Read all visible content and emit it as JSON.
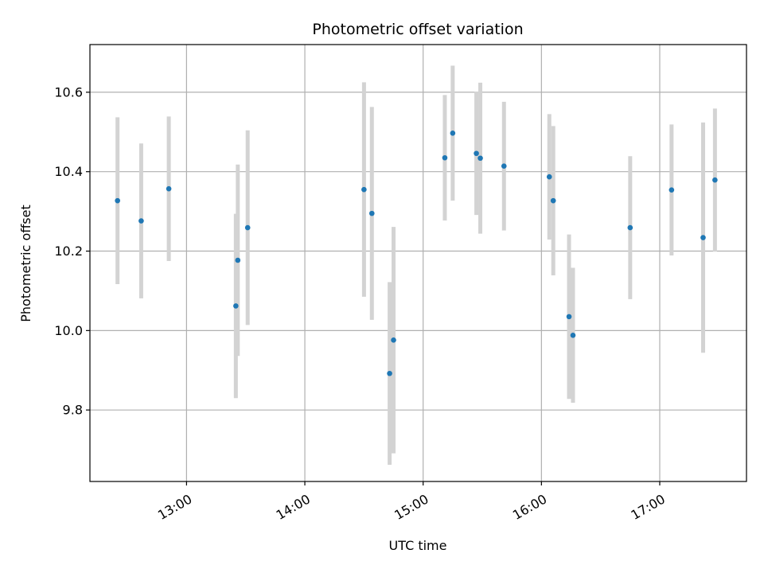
{
  "chart_data": {
    "type": "scatter",
    "title": "Photometric offset variation",
    "xlabel": "UTC time",
    "ylabel": "Photometric offset",
    "x_ticks": [
      "13:00",
      "14:00",
      "15:00",
      "16:00",
      "17:00"
    ],
    "y_ticks": [
      "9.8",
      "10.0",
      "10.2",
      "10.4",
      "10.6"
    ],
    "xlim": [
      "12:11",
      "17:44"
    ],
    "ylim": [
      9.62,
      10.72
    ],
    "grid": true,
    "series": [
      {
        "points": [
          {
            "x": "12:25",
            "y": 10.327,
            "err": 0.21
          },
          {
            "x": "12:37",
            "y": 10.276,
            "err": 0.195
          },
          {
            "x": "12:51",
            "y": 10.357,
            "err": 0.182
          },
          {
            "x": "13:25",
            "y": 10.062,
            "err": 0.232
          },
          {
            "x": "13:26",
            "y": 10.177,
            "err": 0.241
          },
          {
            "x": "13:31",
            "y": 10.259,
            "err": 0.245
          },
          {
            "x": "14:30",
            "y": 10.355,
            "err": 0.27
          },
          {
            "x": "14:34",
            "y": 10.295,
            "err": 0.268
          },
          {
            "x": "14:43",
            "y": 9.892,
            "err": 0.23
          },
          {
            "x": "14:45",
            "y": 9.976,
            "err": 0.285
          },
          {
            "x": "15:11",
            "y": 10.435,
            "err": 0.158
          },
          {
            "x": "15:15",
            "y": 10.497,
            "err": 0.17
          },
          {
            "x": "15:27",
            "y": 10.446,
            "err": 0.155
          },
          {
            "x": "15:29",
            "y": 10.434,
            "err": 0.19
          },
          {
            "x": "15:41",
            "y": 10.414,
            "err": 0.162
          },
          {
            "x": "16:04",
            "y": 10.387,
            "err": 0.158
          },
          {
            "x": "16:06",
            "y": 10.327,
            "err": 0.188
          },
          {
            "x": "16:14",
            "y": 10.035,
            "err": 0.207
          },
          {
            "x": "16:16",
            "y": 9.988,
            "err": 0.17
          },
          {
            "x": "16:45",
            "y": 10.259,
            "err": 0.18
          },
          {
            "x": "17:06",
            "y": 10.354,
            "err": 0.165
          },
          {
            "x": "17:22",
            "y": 10.234,
            "err": 0.29
          },
          {
            "x": "17:28",
            "y": 10.379,
            "err": 0.18
          }
        ]
      }
    ],
    "colors": {
      "point": "#1f77b4",
      "errorbar": "#d3d3d3",
      "grid": "#b0b0b0"
    }
  }
}
